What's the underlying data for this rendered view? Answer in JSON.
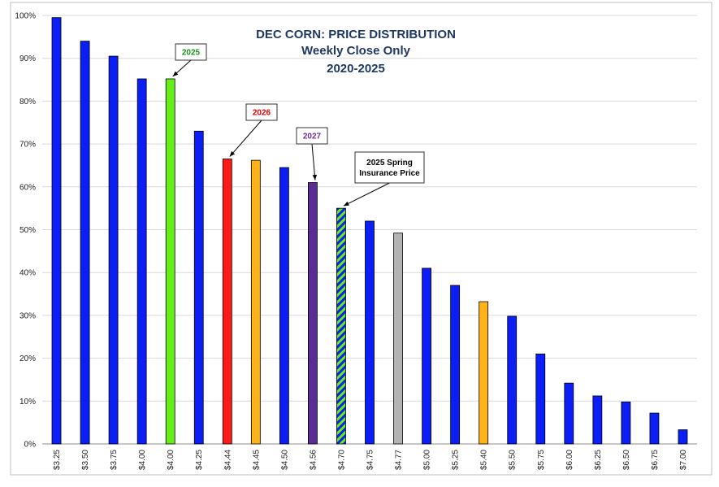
{
  "chart_data": {
    "type": "bar",
    "title_lines": [
      "DEC CORN: PRICE DISTRIBUTION",
      "Weekly Close Only",
      "2020-2025"
    ],
    "categories": [
      "$3.25",
      "$3.50",
      "$3.75",
      "$4.00",
      "$4.00",
      "$4.25",
      "$4.44",
      "$4.45",
      "$4.50",
      "$4.56",
      "$4.70",
      "$4.75",
      "$4.77",
      "$5.00",
      "$5.25",
      "$5.40",
      "$5.50",
      "$5.75",
      "$6.00",
      "$6.25",
      "$6.50",
      "$6.75",
      "$7.00"
    ],
    "values": [
      99.5,
      94.0,
      90.5,
      85.2,
      85.2,
      73.0,
      66.5,
      66.2,
      64.5,
      61.0,
      55.0,
      52.0,
      49.2,
      41.0,
      37.0,
      33.2,
      29.8,
      21.0,
      14.2,
      11.2,
      9.8,
      7.2,
      3.3
    ],
    "bar_colors": [
      "#0a1ef5",
      "#0a1ef5",
      "#0a1ef5",
      "#0a1ef5",
      "#66ee1a",
      "#0a1ef5",
      "#ff1a1a",
      "#ffb31a",
      "#0a1ef5",
      "#5a2d91",
      "hatched",
      "#0a1ef5",
      "#b3b3b3",
      "#0a1ef5",
      "#0a1ef5",
      "#ffb31a",
      "#0a1ef5",
      "#0a1ef5",
      "#0a1ef5",
      "#0a1ef5",
      "#0a1ef5",
      "#0a1ef5",
      "#0a1ef5"
    ],
    "hatch_colors": [
      "#66ee1a",
      "#0a1ef5"
    ],
    "ylim": [
      0,
      100
    ],
    "yticks": [
      "0%",
      "10%",
      "20%",
      "30%",
      "40%",
      "50%",
      "60%",
      "70%",
      "80%",
      "90%",
      "100%"
    ],
    "grid": true,
    "xlabel": "",
    "ylabel": "",
    "annotations": [
      {
        "lines": [
          "2025"
        ],
        "color": "#1a8f1a",
        "target_index": 4
      },
      {
        "lines": [
          "2026"
        ],
        "color": "#e00000",
        "target_index": 6
      },
      {
        "lines": [
          "2027"
        ],
        "color": "#6a2d9b",
        "target_index": 9
      },
      {
        "lines": [
          "2025 Spring",
          "Insurance Price"
        ],
        "color": "#000000",
        "target_index": 10
      }
    ]
  }
}
